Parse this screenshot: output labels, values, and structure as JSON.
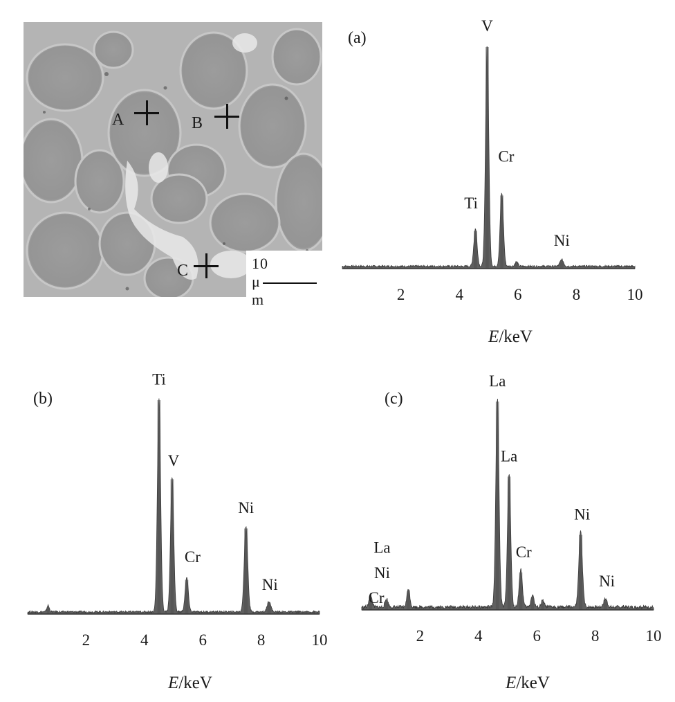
{
  "micrograph": {
    "markers": [
      "A",
      "B",
      "C"
    ],
    "scale_label": "10 μ m"
  },
  "chart_data": [
    {
      "type": "area",
      "panel_label": "(a)",
      "xlabel_italic": "E",
      "xlabel_rest": "/keV",
      "xlim": [
        0,
        10
      ],
      "xticks": [
        "2",
        "4",
        "6",
        "8",
        "10"
      ],
      "ylim": [
        0,
        100
      ],
      "peaks": [
        {
          "x": 4.55,
          "height": 17,
          "width": 0.055
        },
        {
          "x": 4.95,
          "height": 100,
          "width": 0.055
        },
        {
          "x": 5.45,
          "height": 33,
          "width": 0.055
        },
        {
          "x": 5.95,
          "height": 2,
          "width": 0.05
        },
        {
          "x": 7.5,
          "height": 3,
          "width": 0.06
        }
      ],
      "annotations": [
        {
          "text": "V",
          "x": 4.95,
          "y": 106
        },
        {
          "text": "Cr",
          "x": 5.6,
          "y": 47
        },
        {
          "text": "Ti",
          "x": 4.4,
          "y": 26
        },
        {
          "text": "Ni",
          "x": 7.5,
          "y": 9
        }
      ]
    },
    {
      "type": "area",
      "panel_label": "(b)",
      "xlabel_italic": "E",
      "xlabel_rest": "/keV",
      "xlim": [
        0,
        10
      ],
      "xticks": [
        "2",
        "4",
        "6",
        "8",
        "10"
      ],
      "ylim": [
        0,
        100
      ],
      "peaks": [
        {
          "x": 0.7,
          "height": 3,
          "width": 0.04
        },
        {
          "x": 4.5,
          "height": 100,
          "width": 0.055
        },
        {
          "x": 4.95,
          "height": 63,
          "width": 0.055
        },
        {
          "x": 5.45,
          "height": 16,
          "width": 0.055
        },
        {
          "x": 7.48,
          "height": 40,
          "width": 0.06
        },
        {
          "x": 8.27,
          "height": 5,
          "width": 0.06
        }
      ],
      "annotations": [
        {
          "text": "Ti",
          "x": 4.5,
          "y": 106
        },
        {
          "text": "V",
          "x": 5.0,
          "y": 68
        },
        {
          "text": "Cr",
          "x": 5.65,
          "y": 23
        },
        {
          "text": "Ni",
          "x": 7.48,
          "y": 46
        },
        {
          "text": "Ni",
          "x": 8.3,
          "y": 10
        }
      ]
    },
    {
      "type": "area",
      "panel_label": "(c)",
      "xlabel_italic": "E",
      "xlabel_rest": "/keV",
      "xlim": [
        0,
        10
      ],
      "xticks": [
        "2",
        "4",
        "6",
        "8",
        "10"
      ],
      "ylim": [
        0,
        100
      ],
      "peaks": [
        {
          "x": 0.3,
          "height": 6,
          "width": 0.05
        },
        {
          "x": 0.85,
          "height": 4,
          "width": 0.05
        },
        {
          "x": 1.6,
          "height": 9,
          "width": 0.05
        },
        {
          "x": 4.65,
          "height": 100,
          "width": 0.055
        },
        {
          "x": 5.05,
          "height": 64,
          "width": 0.055
        },
        {
          "x": 5.45,
          "height": 18,
          "width": 0.055
        },
        {
          "x": 5.85,
          "height": 6,
          "width": 0.05
        },
        {
          "x": 6.2,
          "height": 3,
          "width": 0.05
        },
        {
          "x": 7.5,
          "height": 36,
          "width": 0.06
        },
        {
          "x": 8.35,
          "height": 4,
          "width": 0.06
        }
      ],
      "annotations": [
        {
          "text": "La",
          "x": 4.65,
          "y": 106
        },
        {
          "text": "La",
          "x": 5.05,
          "y": 70
        },
        {
          "text": "Cr",
          "x": 5.55,
          "y": 24
        },
        {
          "text": "Ni",
          "x": 7.55,
          "y": 42
        },
        {
          "text": "Ni",
          "x": 8.4,
          "y": 10
        },
        {
          "text": "La",
          "x": 0.7,
          "y": 26
        },
        {
          "text": "Ni",
          "x": 0.7,
          "y": 14
        },
        {
          "text": "Cr",
          "x": 0.5,
          "y": 2
        }
      ]
    }
  ]
}
